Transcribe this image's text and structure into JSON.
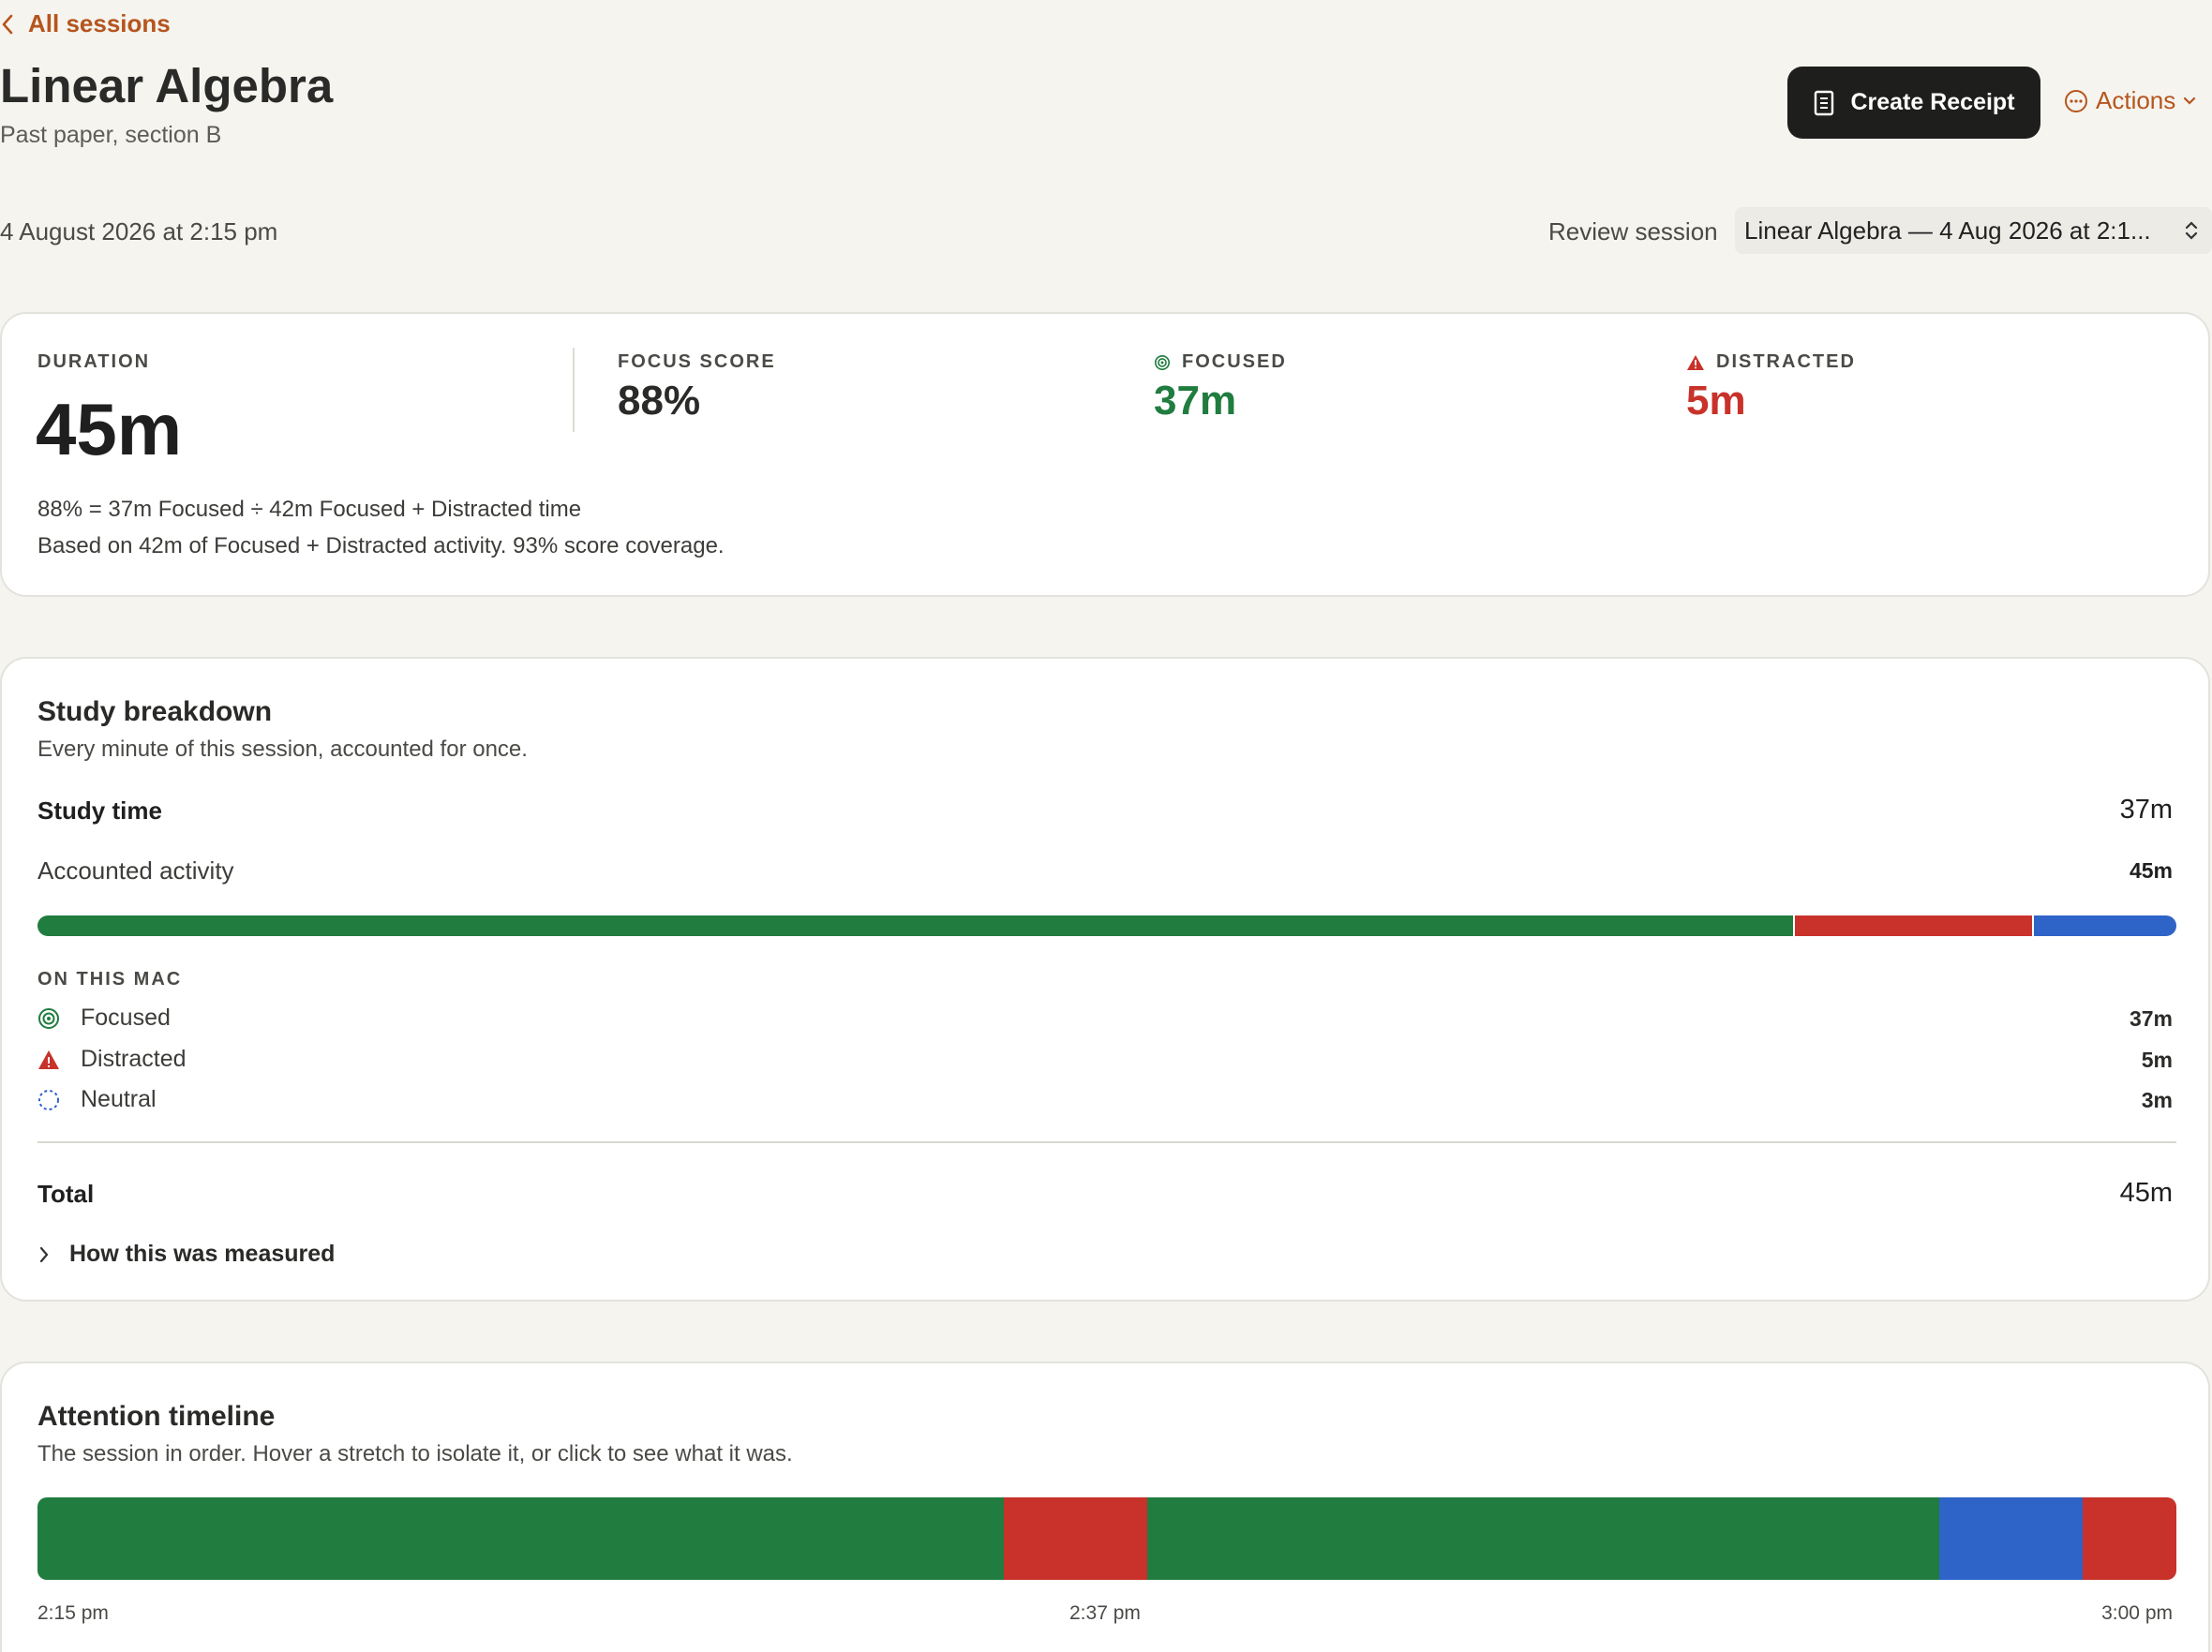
{
  "nav": {
    "back_label": "All sessions"
  },
  "header": {
    "title": "Linear Algebra",
    "subtitle": "Past paper, section B",
    "create_receipt_label": "Create Receipt",
    "actions_label": "Actions"
  },
  "session": {
    "date": "4 August 2026 at 2:15 pm",
    "review_label": "Review session",
    "review_selected": "Linear Algebra — 4 Aug 2026 at 2:1..."
  },
  "summary": {
    "duration_label": "DURATION",
    "duration_value": "45m",
    "focus_score_label": "FOCUS SCORE",
    "focus_score_value": "88%",
    "focused_label": "FOCUSED",
    "focused_value": "37m",
    "distracted_label": "DISTRACTED",
    "distracted_value": "5m",
    "formula_line1": "88% = 37m Focused ÷ 42m Focused + Distracted time",
    "formula_line2": "Based on 42m of Focused + Distracted activity. 93% score coverage."
  },
  "breakdown": {
    "title": "Study breakdown",
    "subtitle": "Every minute of this session, accounted for once.",
    "study_time_label": "Study time",
    "study_time_value": "37m",
    "accounted_label": "Accounted activity",
    "accounted_value": "45m",
    "bar": {
      "focused_minutes": 37,
      "distracted_minutes": 5,
      "neutral_minutes": 3
    },
    "group_label": "ON THIS MAC",
    "items": [
      {
        "label": "Focused",
        "value": "37m",
        "icon": "focus-target-icon"
      },
      {
        "label": "Distracted",
        "value": "5m",
        "icon": "warning-triangle-icon"
      },
      {
        "label": "Neutral",
        "value": "3m",
        "icon": "dashed-circle-icon"
      }
    ],
    "total_label": "Total",
    "total_value": "45m",
    "measured_label": "How this was measured"
  },
  "timeline": {
    "title": "Attention timeline",
    "subtitle": "The session in order. Hover a stretch to isolate it, or click to see what it was.",
    "segments": [
      {
        "state": "focused",
        "start": 0.0,
        "end": 0.452
      },
      {
        "state": "distracted",
        "start": 0.452,
        "end": 0.519
      },
      {
        "state": "focused",
        "start": 0.519,
        "end": 0.889
      },
      {
        "state": "neutral",
        "start": 0.889,
        "end": 0.956
      },
      {
        "state": "distracted",
        "start": 0.956,
        "end": 1.0
      }
    ],
    "ticks": [
      "2:15 pm",
      "2:37 pm",
      "3:00 pm"
    ]
  },
  "colors": {
    "accent": "#b5551e",
    "focused": "#207c3f",
    "distracted": "#c8322a",
    "neutral": "#2e63c7",
    "background": "#f5f4ef"
  }
}
